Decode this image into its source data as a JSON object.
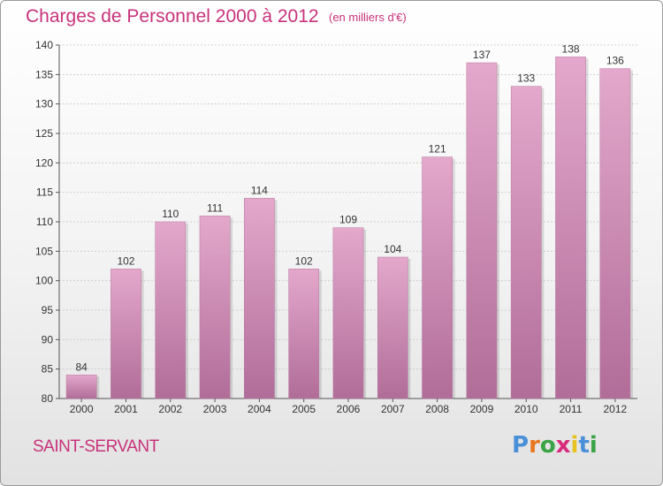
{
  "title": "Charges de Personnel 2000 à 2012",
  "subtitle": "(en milliers d'€)",
  "location": "SAINT-SERVANT",
  "logo": {
    "letters": [
      "P",
      "r",
      "o",
      "x",
      "i",
      "t",
      "i"
    ],
    "colors": [
      "#4a90d9",
      "#e8771f",
      "#3aa345",
      "#d92b7b",
      "#e8c21f",
      "#4a90d9",
      "#3aa345"
    ]
  },
  "colors": {
    "accent": "#c8327a",
    "bar_top": "#e4a8cc",
    "bar_bottom": "#b06d98",
    "grid": "#cfcfcf"
  },
  "chart_data": {
    "type": "bar",
    "categories": [
      "2000",
      "2001",
      "2002",
      "2003",
      "2004",
      "2005",
      "2006",
      "2007",
      "2008",
      "2009",
      "2010",
      "2011",
      "2012"
    ],
    "values": [
      84,
      102,
      110,
      111,
      114,
      102,
      109,
      104,
      121,
      137,
      133,
      138,
      136
    ],
    "title": "Charges de Personnel 2000 à 2012",
    "xlabel": "",
    "ylabel": "",
    "ylim": [
      80,
      140
    ],
    "yticks": [
      80,
      85,
      90,
      95,
      100,
      105,
      110,
      115,
      120,
      125,
      130,
      135,
      140
    ],
    "grid": true,
    "data_labels": true
  }
}
